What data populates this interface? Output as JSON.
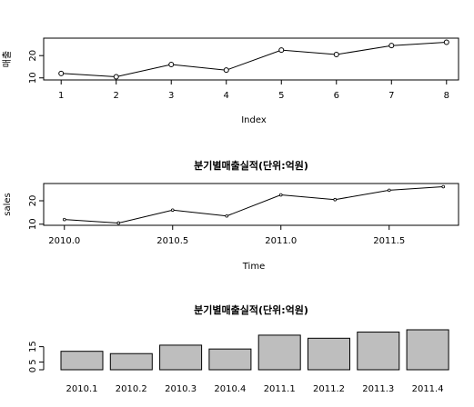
{
  "chart_data": [
    {
      "type": "line",
      "title": "",
      "xlabel": "Index",
      "ylabel": "매출",
      "x": [
        1,
        2,
        3,
        4,
        5,
        6,
        7,
        8
      ],
      "series": [
        {
          "values": [
            12,
            10.5,
            16,
            13.5,
            22.5,
            20.5,
            24.5,
            26
          ]
        }
      ],
      "xticks": [
        "1",
        "2",
        "3",
        "4",
        "5",
        "6",
        "7",
        "8"
      ],
      "yticks": [
        "10",
        "20"
      ],
      "xlim": [
        0.98,
        8.02
      ],
      "ylim": [
        10.3,
        26.2
      ],
      "markers": "open-circle",
      "grid": false,
      "legend": "none"
    },
    {
      "type": "line",
      "title": "분기별매출실적(단위:억원)",
      "xlabel": "Time",
      "ylabel": "sales",
      "x": [
        2010.0,
        2010.25,
        2010.5,
        2010.75,
        2011.0,
        2011.25,
        2011.5,
        2011.75
      ],
      "series": [
        {
          "values": [
            12,
            10.5,
            16,
            13.5,
            22.5,
            20.5,
            24.5,
            26
          ]
        }
      ],
      "xticks": [
        "2010.0",
        "2010.5",
        "2011.0",
        "2011.5"
      ],
      "yticks": [
        "10",
        "20"
      ],
      "xlim": [
        2009.98,
        2011.77
      ],
      "ylim": [
        10.3,
        26.2
      ],
      "markers": "small-point",
      "grid": false,
      "legend": "none"
    },
    {
      "type": "bar",
      "title": "분기별매출실적(단위:억원)",
      "categories": [
        "2010.1",
        "2010.2",
        "2010.3",
        "2010.4",
        "2011.1",
        "2011.2",
        "2011.3",
        "2011.4"
      ],
      "values": [
        12,
        10.5,
        16,
        13.5,
        22.5,
        20.5,
        24.5,
        26
      ],
      "yticks": [
        "0",
        "5",
        "15"
      ],
      "ylim": [
        0,
        26
      ],
      "bar_color": "#bebebe",
      "grid": false,
      "legend": "none"
    }
  ]
}
